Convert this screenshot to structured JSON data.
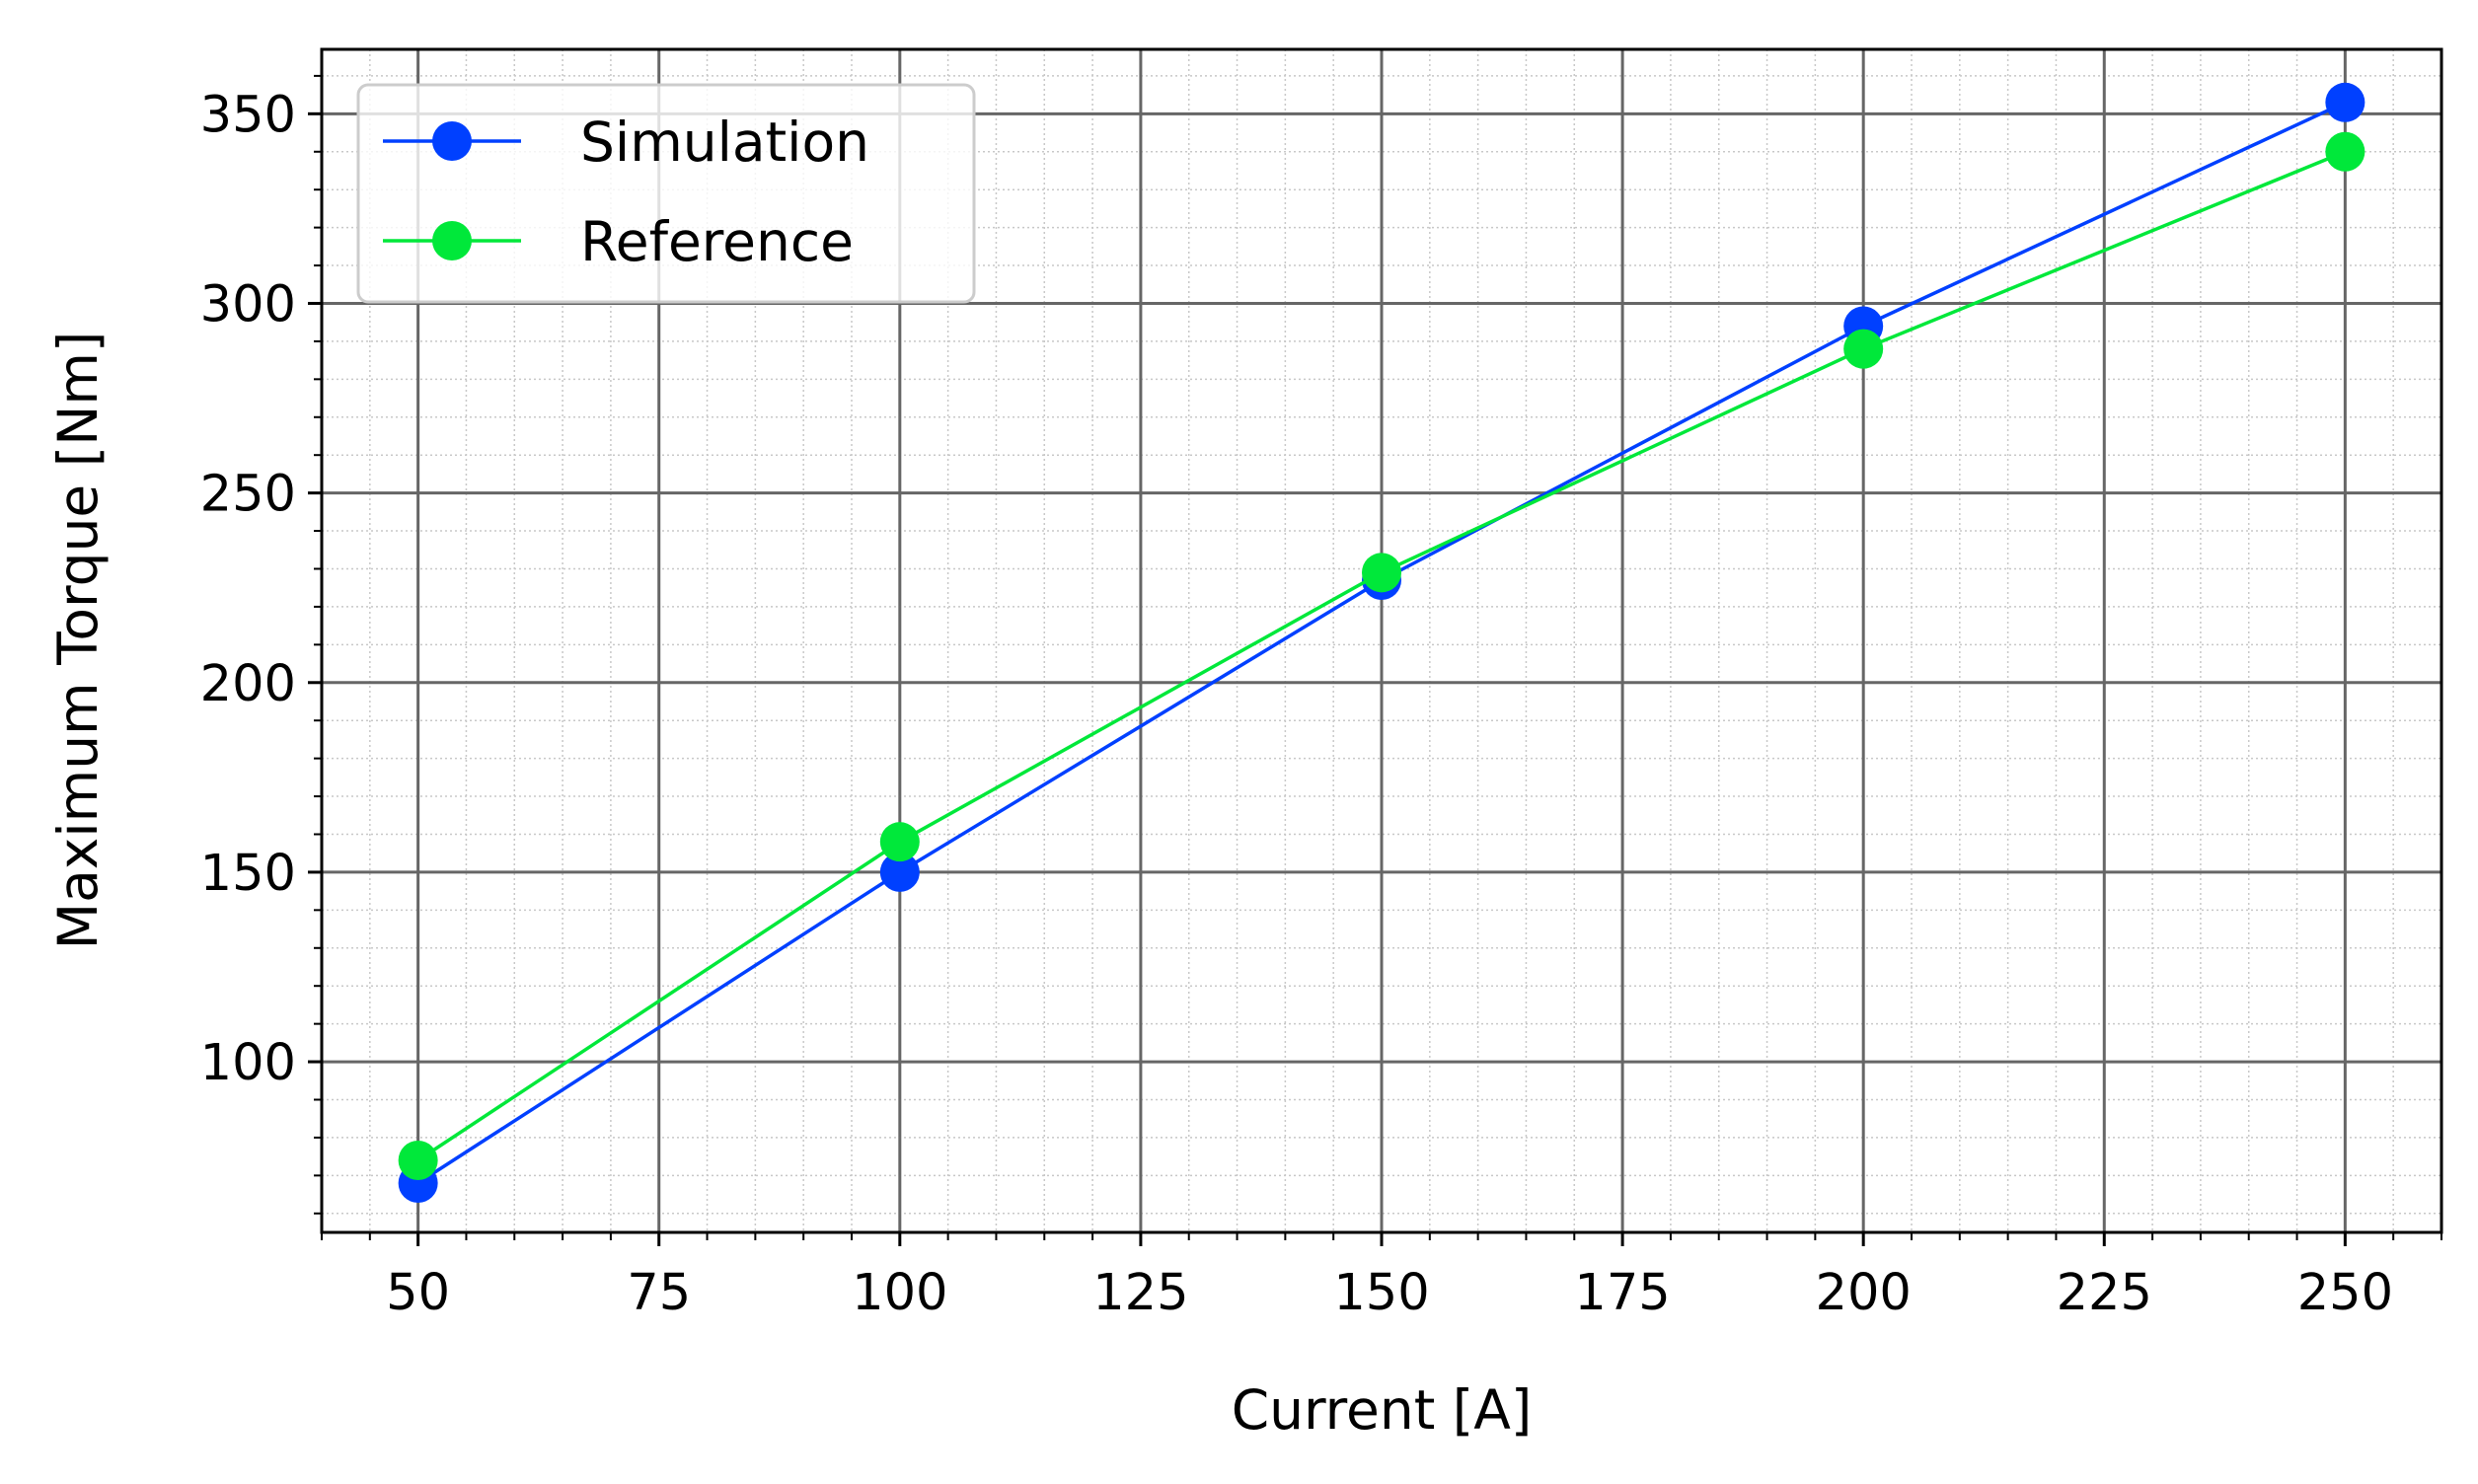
{
  "chart_data": {
    "type": "line",
    "title": "",
    "xlabel": "Current [A]",
    "ylabel": "Maximum Torque [Nm]",
    "x": [
      50,
      100,
      150,
      200,
      250
    ],
    "xlim": [
      40,
      260
    ],
    "ylim": [
      55,
      367
    ],
    "xticks": [
      50,
      75,
      100,
      125,
      150,
      175,
      200,
      225,
      250
    ],
    "yticks": [
      100,
      150,
      200,
      250,
      300,
      350
    ],
    "x_minor_step": 5,
    "y_minor_step": 10,
    "grid": true,
    "minor_grid": true,
    "legend_position": "top-left",
    "series": [
      {
        "name": "Simulation",
        "color": "#0040ff",
        "marker": "circle",
        "values": [
          68,
          150,
          227,
          294,
          353
        ]
      },
      {
        "name": "Reference",
        "color": "#00e83a",
        "marker": "circle",
        "values": [
          74,
          158,
          229,
          288,
          340
        ]
      }
    ]
  }
}
